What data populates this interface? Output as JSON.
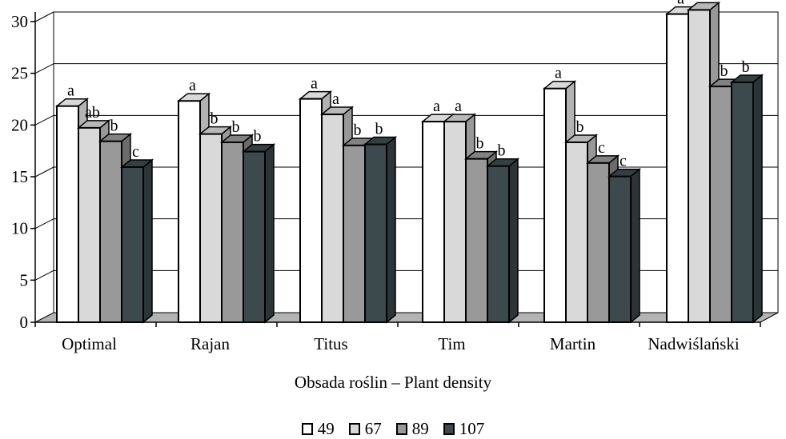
{
  "chart_data": {
    "type": "bar",
    "style": "3d-clustered-column",
    "categories": [
      "Optimal",
      "Rajan",
      "Titus",
      "Tim",
      "Martin",
      "Nadwiślański"
    ],
    "series": [
      {
        "name": "49",
        "color": "#ffffff",
        "values": [
          20.9,
          21.4,
          21.6,
          19.4,
          22.6,
          29.8
        ]
      },
      {
        "name": "67",
        "color": "#d9d9d9",
        "values": [
          18.8,
          18.2,
          20.1,
          19.4,
          17.4,
          30.2
        ]
      },
      {
        "name": "89",
        "color": "#999999",
        "values": [
          17.5,
          17.4,
          17.1,
          15.8,
          15.4,
          22.8
        ]
      },
      {
        "name": "107",
        "color": "#3d4a4d",
        "values": [
          15.0,
          16.5,
          17.2,
          15.1,
          14.1,
          23.2
        ]
      }
    ],
    "significance_labels": [
      [
        "a",
        "ab",
        "b",
        "c"
      ],
      [
        "a",
        "b",
        "b",
        "b"
      ],
      [
        "a",
        "a",
        "b",
        "b"
      ],
      [
        "a",
        "a",
        "b",
        "b"
      ],
      [
        "a",
        "b",
        "c",
        "c"
      ],
      [
        "a",
        "a",
        "b",
        "b"
      ]
    ],
    "ylim": [
      0,
      30
    ],
    "yticks": [
      "0",
      "5",
      "10",
      "15",
      "20",
      "25",
      "30"
    ],
    "xlabel": "Obsada roślin – Plant density",
    "ylabel": "",
    "title": "",
    "grid": true,
    "legend_position": "bottom"
  }
}
